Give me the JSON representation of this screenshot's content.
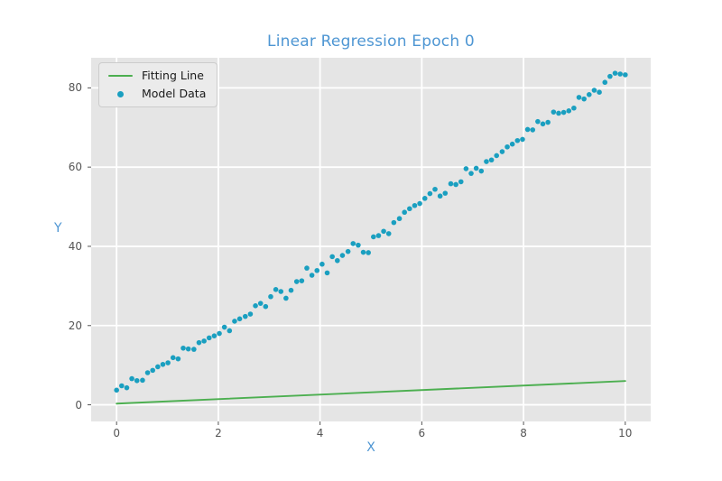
{
  "title": "Linear Regression Epoch 0",
  "colors": {
    "title_blue": "#4e96d3",
    "axes_background": "#e5e5e5",
    "grid": "#ffffff",
    "tick_label": "#555555",
    "tick_mark": "#555555",
    "fitting_line_green": "#4caf50",
    "model_data_cyan": "#1a9fc0",
    "legend_background": "#ebebeb",
    "legend_border": "#cccccc",
    "legend_text": "#1a1a1a"
  },
  "legend": {
    "entries": [
      {
        "label": "Fitting Line",
        "marker": "line",
        "color": "#4caf50"
      },
      {
        "label": "Model Data",
        "marker": "dot",
        "color": "#1a9fc0"
      }
    ]
  },
  "chart_data": {
    "type": "scatter",
    "title": "Linear Regression Epoch 0",
    "xlabel": "X",
    "ylabel": "Y",
    "xlim": [
      -0.5,
      10.5
    ],
    "ylim": [
      -4.2,
      87.6
    ],
    "x_ticks": [
      0,
      2,
      4,
      6,
      8,
      10
    ],
    "y_ticks": [
      0,
      20,
      40,
      60,
      80
    ],
    "grid": true,
    "legend_position": "upper-left",
    "series": [
      {
        "name": "Fitting Line",
        "type": "line",
        "color": "#4caf50",
        "x": [
          0,
          10
        ],
        "y": [
          0.3,
          6.0
        ]
      },
      {
        "name": "Model Data",
        "type": "scatter",
        "color": "#1a9fc0",
        "x": [
          0,
          0.1,
          0.2,
          0.3,
          0.4,
          0.51,
          0.61,
          0.71,
          0.81,
          0.91,
          1.01,
          1.11,
          1.21,
          1.31,
          1.41,
          1.52,
          1.62,
          1.72,
          1.82,
          1.92,
          2.02,
          2.12,
          2.22,
          2.32,
          2.42,
          2.53,
          2.63,
          2.73,
          2.83,
          2.93,
          3.03,
          3.13,
          3.23,
          3.33,
          3.43,
          3.54,
          3.64,
          3.74,
          3.84,
          3.94,
          4.04,
          4.14,
          4.24,
          4.34,
          4.44,
          4.55,
          4.65,
          4.75,
          4.85,
          4.95,
          5.05,
          5.15,
          5.25,
          5.35,
          5.45,
          5.56,
          5.66,
          5.76,
          5.86,
          5.96,
          6.06,
          6.16,
          6.26,
          6.36,
          6.46,
          6.57,
          6.67,
          6.77,
          6.87,
          6.97,
          7.07,
          7.17,
          7.27,
          7.37,
          7.47,
          7.58,
          7.68,
          7.78,
          7.88,
          7.98,
          8.08,
          8.18,
          8.28,
          8.38,
          8.48,
          8.59,
          8.69,
          8.79,
          8.89,
          8.99,
          9.09,
          9.19,
          9.29,
          9.39,
          9.49,
          9.6,
          9.7,
          9.8,
          9.9,
          10
        ],
        "y": [
          3.7,
          4.8,
          4.3,
          6.6,
          6.1,
          6.2,
          8.1,
          8.7,
          9.6,
          10.2,
          10.6,
          11.9,
          11.6,
          14.3,
          14.1,
          14.0,
          15.7,
          16.1,
          16.9,
          17.4,
          18.0,
          19.6,
          18.7,
          21.1,
          21.7,
          22.3,
          22.9,
          25.0,
          25.6,
          24.8,
          27.3,
          29.1,
          28.6,
          26.9,
          28.9,
          31.1,
          31.3,
          34.5,
          32.7,
          33.9,
          35.5,
          33.3,
          37.4,
          36.4,
          37.7,
          38.7,
          40.7,
          40.3,
          38.5,
          38.4,
          42.4,
          42.7,
          43.8,
          43.2,
          46.0,
          47.0,
          48.6,
          49.5,
          50.3,
          50.8,
          52.1,
          53.3,
          54.4,
          52.7,
          53.4,
          55.8,
          55.6,
          56.3,
          59.6,
          58.4,
          59.7,
          59.0,
          61.4,
          61.8,
          62.9,
          63.9,
          65.1,
          65.8,
          66.7,
          67.0,
          69.5,
          69.4,
          71.5,
          70.9,
          71.3,
          73.9,
          73.6,
          73.8,
          74.2,
          74.9,
          77.6,
          77.2,
          78.3,
          79.4,
          78.9,
          81.4,
          82.9,
          83.7,
          83.5,
          83.3
        ]
      }
    ]
  }
}
